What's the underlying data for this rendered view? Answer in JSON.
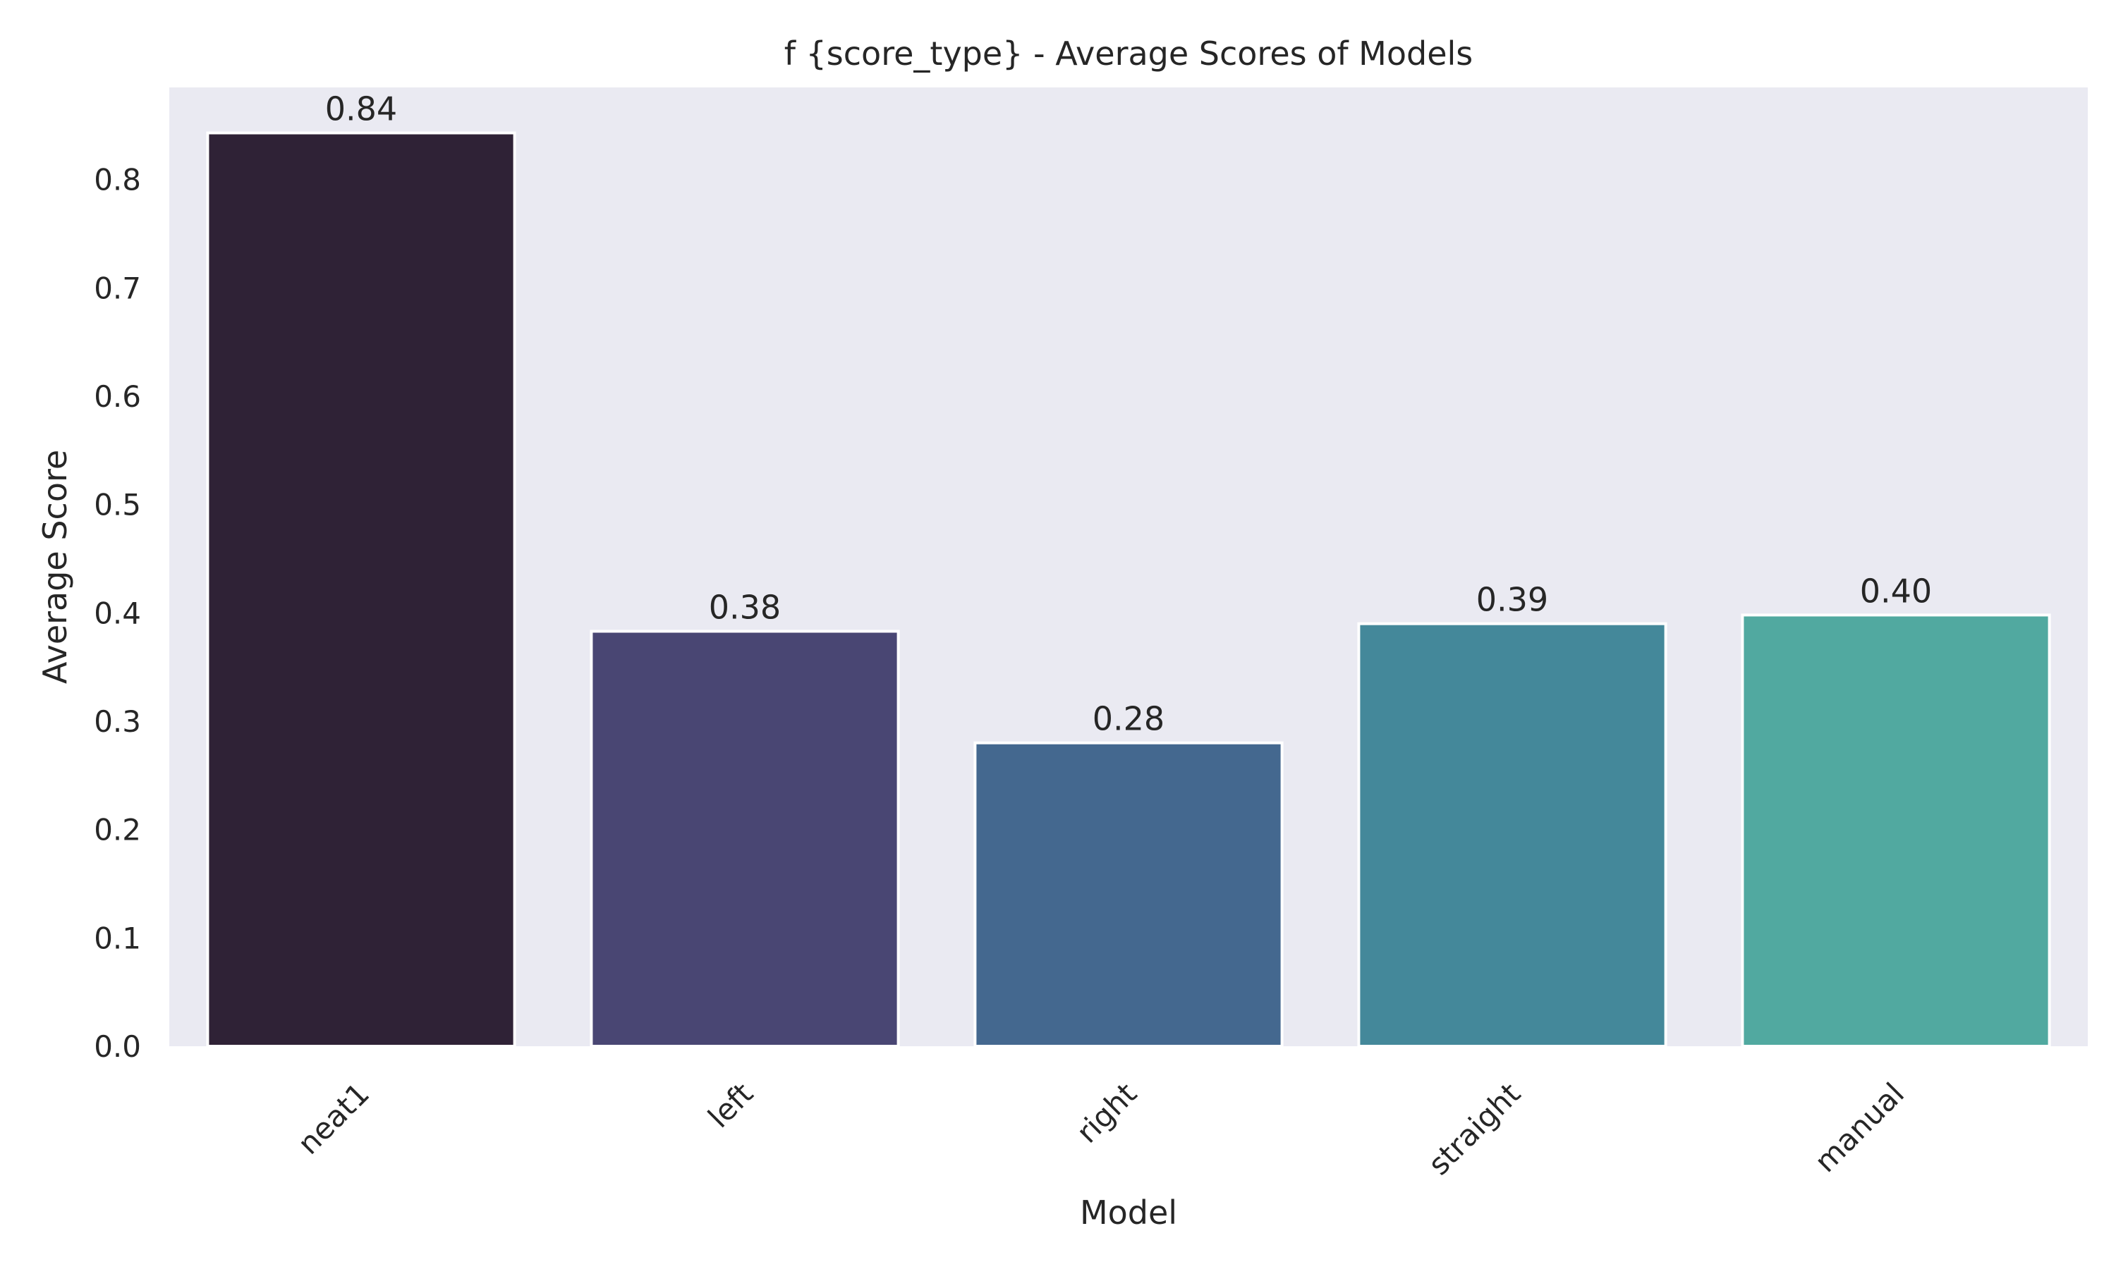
{
  "chart_data": {
    "type": "bar",
    "title": "f {score_type} - Average Scores of Models",
    "xlabel": "Model",
    "ylabel": "Average Score",
    "categories": [
      "neat1",
      "left",
      "right",
      "straight",
      "manual"
    ],
    "values": [
      0.843,
      0.383,
      0.28,
      0.39,
      0.398
    ],
    "value_labels": [
      "0.84",
      "0.38",
      "0.28",
      "0.39",
      "0.40"
    ],
    "ylim": [
      0,
      0.885
    ],
    "yticks": [
      0.0,
      0.1,
      0.2,
      0.3,
      0.4,
      0.5,
      0.6,
      0.7,
      0.8
    ],
    "ytick_labels": [
      "0.0",
      "0.1",
      "0.2",
      "0.3",
      "0.4",
      "0.5",
      "0.6",
      "0.7",
      "0.8"
    ],
    "xtick_rotation_deg": 45,
    "grid": false,
    "colors": [
      "#2f2236",
      "#494673",
      "#44688f",
      "#44889a",
      "#51a9a0"
    ],
    "plot_background": "#eaeaf2",
    "bar_edge_color": "#ffffff"
  }
}
